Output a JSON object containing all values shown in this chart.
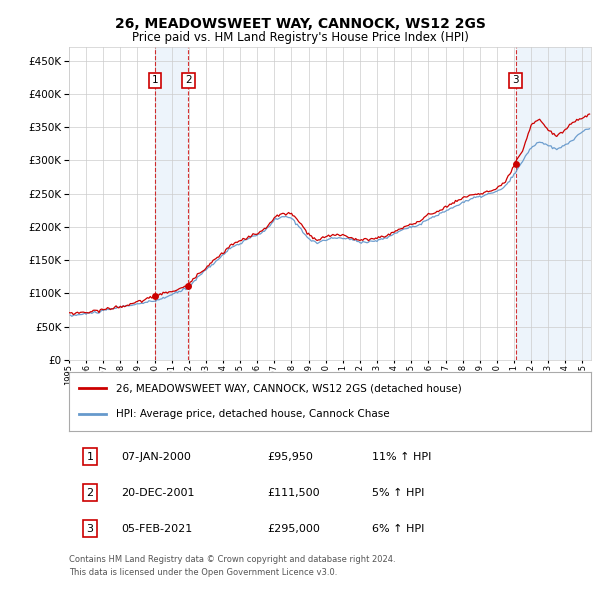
{
  "title": "26, MEADOWSWEET WAY, CANNOCK, WS12 2GS",
  "subtitle": "Price paid vs. HM Land Registry's House Price Index (HPI)",
  "legend_line1": "26, MEADOWSWEET WAY, CANNOCK, WS12 2GS (detached house)",
  "legend_line2": "HPI: Average price, detached house, Cannock Chase",
  "transactions": [
    {
      "num": 1,
      "date": "07-JAN-2000",
      "price": 95950,
      "pct": "11%",
      "dir": "↑",
      "x_year": 2000.03
    },
    {
      "num": 2,
      "date": "20-DEC-2001",
      "price": 111500,
      "pct": "5%",
      "dir": "↑",
      "x_year": 2001.97
    },
    {
      "num": 3,
      "date": "05-FEB-2021",
      "price": 295000,
      "pct": "6%",
      "dir": "↑",
      "x_year": 2021.1
    }
  ],
  "transaction_prices": [
    95950,
    111500,
    295000
  ],
  "footer_line1": "Contains HM Land Registry data © Crown copyright and database right 2024.",
  "footer_line2": "This data is licensed under the Open Government Licence v3.0.",
  "red_color": "#cc0000",
  "blue_color": "#6699cc",
  "shade_color": "#cce0f5",
  "grid_color": "#cccccc",
  "ylim": [
    0,
    470000
  ],
  "xlim_start": 1995.0,
  "xlim_end": 2025.5,
  "hpi_anchors": [
    [
      1995.0,
      66000
    ],
    [
      1996.0,
      69000
    ],
    [
      1997.0,
      73000
    ],
    [
      1998.0,
      78000
    ],
    [
      1999.0,
      83000
    ],
    [
      2000.03,
      86500
    ],
    [
      2001.0,
      96000
    ],
    [
      2001.97,
      106000
    ],
    [
      2002.5,
      122000
    ],
    [
      2003.5,
      145000
    ],
    [
      2004.5,
      168000
    ],
    [
      2005.5,
      180000
    ],
    [
      2006.5,
      192000
    ],
    [
      2007.0,
      208000
    ],
    [
      2007.5,
      212000
    ],
    [
      2008.0,
      210000
    ],
    [
      2008.5,
      195000
    ],
    [
      2009.0,
      180000
    ],
    [
      2009.5,
      173000
    ],
    [
      2010.0,
      178000
    ],
    [
      2010.5,
      180000
    ],
    [
      2011.0,
      180000
    ],
    [
      2011.5,
      178000
    ],
    [
      2012.0,
      174000
    ],
    [
      2012.5,
      175000
    ],
    [
      2013.0,
      177000
    ],
    [
      2013.5,
      180000
    ],
    [
      2014.0,
      187000
    ],
    [
      2014.5,
      193000
    ],
    [
      2015.0,
      198000
    ],
    [
      2015.5,
      202000
    ],
    [
      2016.0,
      210000
    ],
    [
      2016.5,
      215000
    ],
    [
      2017.0,
      222000
    ],
    [
      2017.5,
      228000
    ],
    [
      2018.0,
      235000
    ],
    [
      2018.5,
      240000
    ],
    [
      2019.0,
      243000
    ],
    [
      2019.5,
      247000
    ],
    [
      2020.0,
      250000
    ],
    [
      2020.5,
      258000
    ],
    [
      2021.1,
      278000
    ],
    [
      2021.5,
      295000
    ],
    [
      2022.0,
      315000
    ],
    [
      2022.5,
      325000
    ],
    [
      2023.0,
      318000
    ],
    [
      2023.5,
      312000
    ],
    [
      2024.0,
      318000
    ],
    [
      2024.5,
      328000
    ],
    [
      2025.0,
      338000
    ],
    [
      2025.3,
      343000
    ]
  ],
  "price_anchors": [
    [
      1995.0,
      70000
    ],
    [
      1996.0,
      72000
    ],
    [
      1997.0,
      76000
    ],
    [
      1998.0,
      81000
    ],
    [
      1999.0,
      87000
    ],
    [
      2000.03,
      95950
    ],
    [
      2001.0,
      103000
    ],
    [
      2001.97,
      111500
    ],
    [
      2002.5,
      128000
    ],
    [
      2003.5,
      152000
    ],
    [
      2004.5,
      175000
    ],
    [
      2005.5,
      186000
    ],
    [
      2006.5,
      198000
    ],
    [
      2007.0,
      215000
    ],
    [
      2007.5,
      220000
    ],
    [
      2008.0,
      220000
    ],
    [
      2008.5,
      205000
    ],
    [
      2009.0,
      188000
    ],
    [
      2009.5,
      178000
    ],
    [
      2010.0,
      183000
    ],
    [
      2010.5,
      186000
    ],
    [
      2011.0,
      186000
    ],
    [
      2011.5,
      183000
    ],
    [
      2012.0,
      178000
    ],
    [
      2012.5,
      180000
    ],
    [
      2013.0,
      182000
    ],
    [
      2013.5,
      185000
    ],
    [
      2014.0,
      192000
    ],
    [
      2014.5,
      198000
    ],
    [
      2015.0,
      204000
    ],
    [
      2015.5,
      208000
    ],
    [
      2016.0,
      217000
    ],
    [
      2016.5,
      222000
    ],
    [
      2017.0,
      230000
    ],
    [
      2017.5,
      236000
    ],
    [
      2018.0,
      243000
    ],
    [
      2018.5,
      248000
    ],
    [
      2019.0,
      250000
    ],
    [
      2019.5,
      253000
    ],
    [
      2020.0,
      257000
    ],
    [
      2020.5,
      265000
    ],
    [
      2021.1,
      295000
    ],
    [
      2021.5,
      310000
    ],
    [
      2022.0,
      348000
    ],
    [
      2022.5,
      358000
    ],
    [
      2023.0,
      342000
    ],
    [
      2023.5,
      332000
    ],
    [
      2024.0,
      342000
    ],
    [
      2024.5,
      354000
    ],
    [
      2025.0,
      360000
    ],
    [
      2025.3,
      364000
    ]
  ]
}
